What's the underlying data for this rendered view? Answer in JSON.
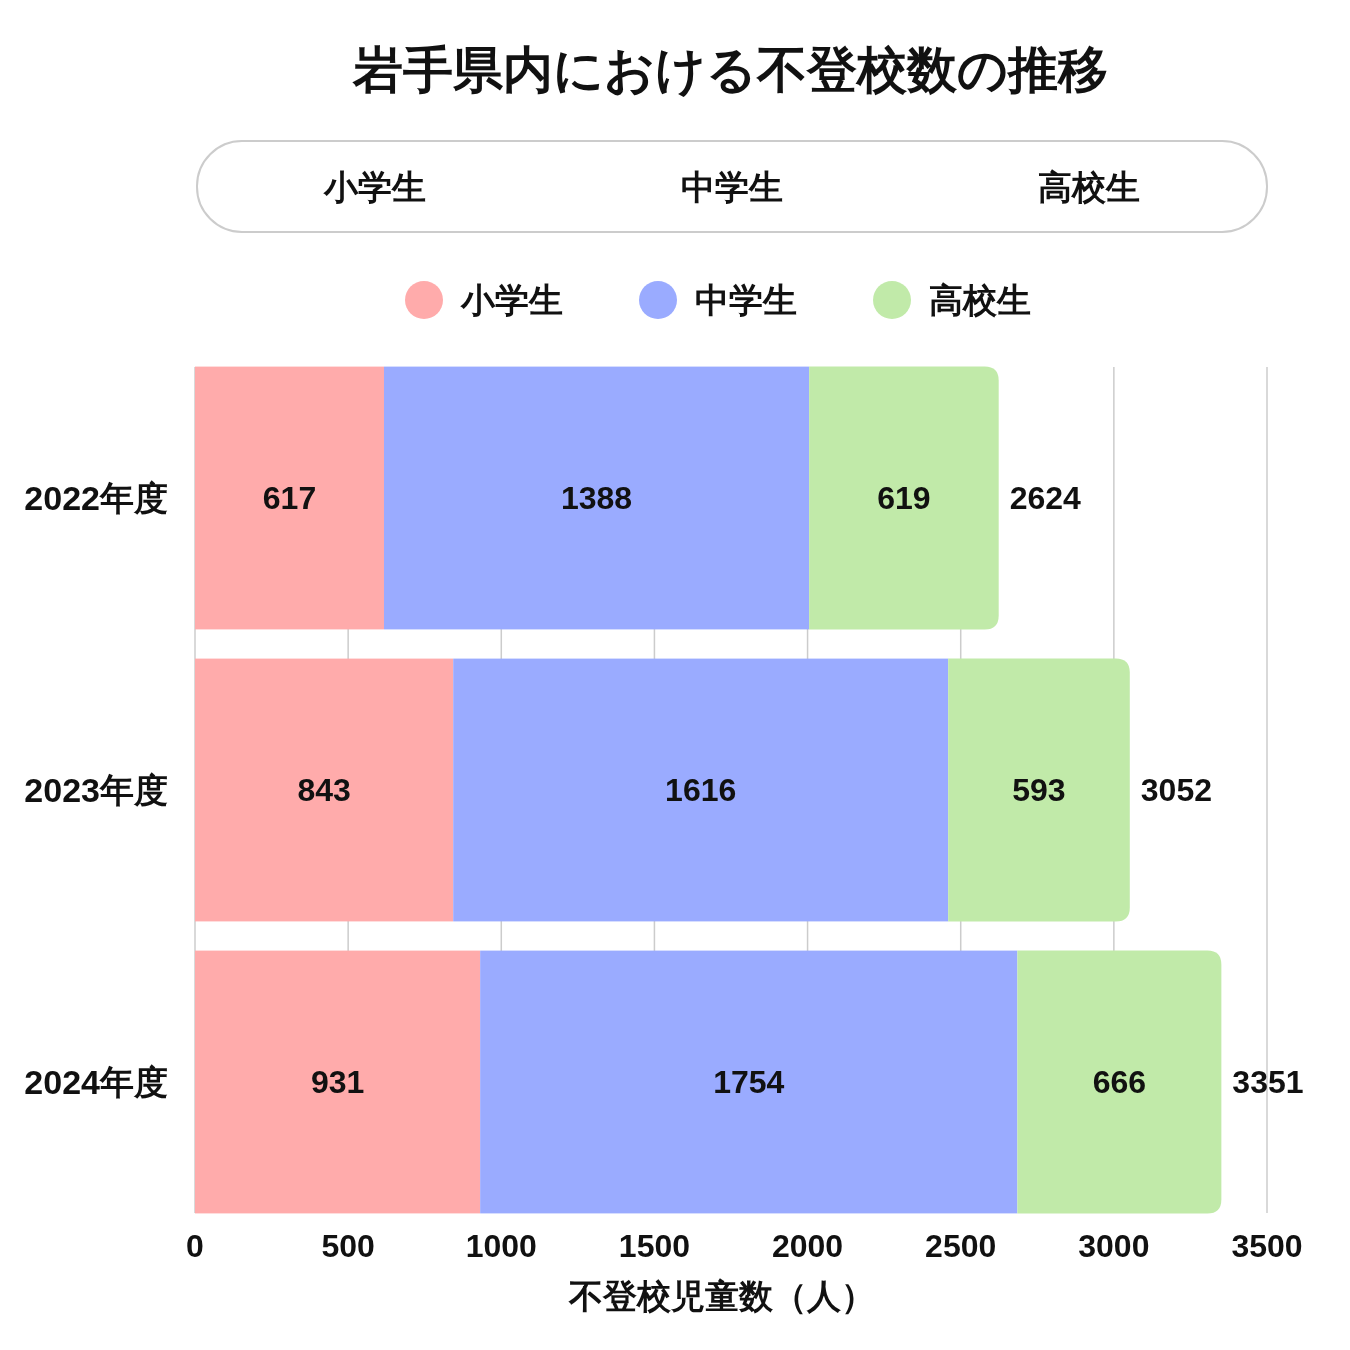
{
  "chart_data": {
    "type": "bar",
    "title": "岩手県内における不登校数の推移",
    "xlabel": "不登校児童数（人）",
    "annotations": [
      "小学生",
      "中学生",
      "高校生"
    ],
    "categories": [
      "2022年度",
      "2023年度",
      "2024年度"
    ],
    "series": [
      {
        "name": "小学生",
        "color": "#ffabab",
        "values": [
          617,
          843,
          931
        ]
      },
      {
        "name": "中学生",
        "color": "#9aabff",
        "values": [
          1388,
          1616,
          1754
        ]
      },
      {
        "name": "高校生",
        "color": "#c1eaa9",
        "values": [
          619,
          593,
          666
        ]
      }
    ],
    "stacked": true,
    "orientation": "horizontal",
    "xlim": [
      0,
      3500
    ],
    "xticks": [
      0,
      500,
      1000,
      1500,
      2000,
      2500,
      3000,
      3500
    ],
    "grid": "x",
    "legend": "top",
    "data_labels": true,
    "totals": [
      "2624",
      "3052",
      "3351"
    ]
  }
}
